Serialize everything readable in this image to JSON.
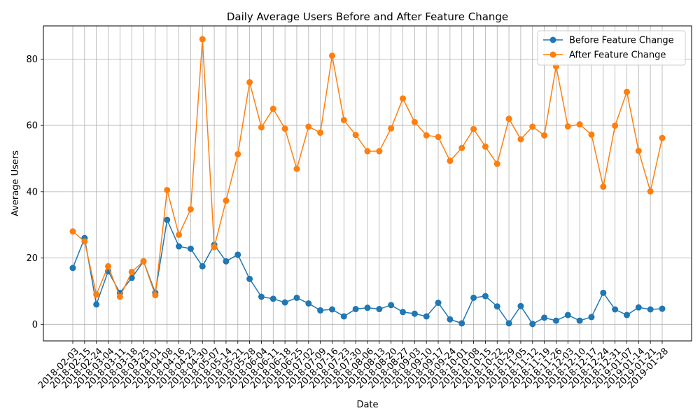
{
  "chart_data": {
    "type": "line",
    "title": "Daily Average Users Before and After Feature Change",
    "xlabel": "Date",
    "ylabel": "Average Users",
    "ylim": [
      -5,
      90
    ],
    "yticks": [
      0,
      20,
      40,
      60,
      80
    ],
    "grid": true,
    "legend_position": "top-right",
    "categories": [
      "2018-02-03",
      "2018-02-15",
      "2018-02-24",
      "2018-03-04",
      "2018-03-11",
      "2018-03-18",
      "2018-03-25",
      "2018-04-01",
      "2018-04-08",
      "2018-04-16",
      "2018-04-23",
      "2018-04-30",
      "2018-05-07",
      "2018-05-14",
      "2018-05-21",
      "2018-05-28",
      "2018-06-04",
      "2018-06-11",
      "2018-06-18",
      "2018-06-25",
      "2018-07-02",
      "2018-07-09",
      "2018-07-16",
      "2018-07-23",
      "2018-07-30",
      "2018-08-06",
      "2018-08-13",
      "2018-08-20",
      "2018-08-27",
      "2018-09-03",
      "2018-09-10",
      "2018-09-17",
      "2018-09-24",
      "2018-10-01",
      "2018-10-08",
      "2018-10-15",
      "2018-10-22",
      "2018-10-29",
      "2018-11-05",
      "2018-11-12",
      "2018-11-19",
      "2018-11-26",
      "2018-12-03",
      "2018-12-10",
      "2018-12-17",
      "2018-12-24",
      "2018-12-31",
      "2019-01-07",
      "2019-01-14",
      "2019-01-21",
      "2019-01-28"
    ],
    "series": [
      {
        "name": "Before Feature Change",
        "color": "#1f77b4",
        "values": [
          17.0,
          26.0,
          6.0,
          16.0,
          9.5,
          14.0,
          19.0,
          9.5,
          31.5,
          23.5,
          22.8,
          17.5,
          24.0,
          19.0,
          21.0,
          13.7,
          8.3,
          7.7,
          6.6,
          8.0,
          6.3,
          4.2,
          4.5,
          2.4,
          4.6,
          5.0,
          4.6,
          5.8,
          3.7,
          3.2,
          2.4,
          6.5,
          1.5,
          0.3,
          8.0,
          8.5,
          5.4,
          0.3,
          5.5,
          0.1,
          2.0,
          1.1,
          2.8,
          1.1,
          2.2,
          9.5,
          4.5,
          2.8,
          5.1,
          4.5,
          4.7
        ]
      },
      {
        "name": "After Feature Change",
        "color": "#ff7f0e",
        "values": [
          28.0,
          25.0,
          9.0,
          17.5,
          8.3,
          15.8,
          19.0,
          8.8,
          40.5,
          27.0,
          34.7,
          86.0,
          23.3,
          37.3,
          51.3,
          73.0,
          59.4,
          65.0,
          59.0,
          46.9,
          59.6,
          57.8,
          81.0,
          61.6,
          57.1,
          52.2,
          52.2,
          59.1,
          68.1,
          61.0,
          57.0,
          56.5,
          49.3,
          53.2,
          58.9,
          53.6,
          48.4,
          62.0,
          55.8,
          59.6,
          57.0,
          77.8,
          59.7,
          60.3,
          57.2,
          41.5,
          59.9,
          70.1,
          52.3,
          40.1,
          56.2
        ]
      }
    ]
  }
}
